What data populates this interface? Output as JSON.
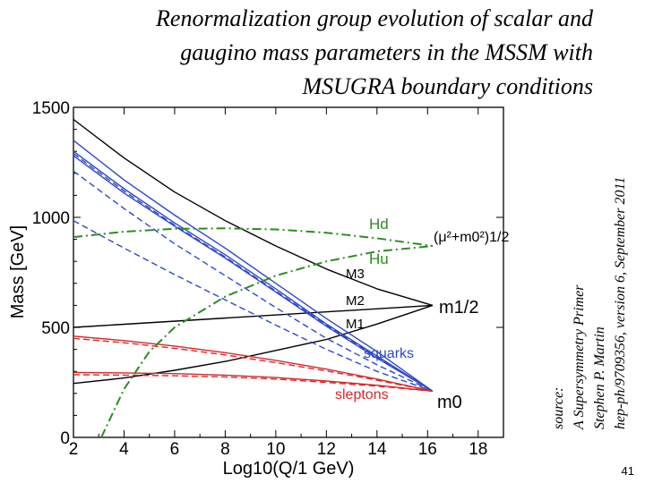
{
  "slide": {
    "title_lines": [
      "Renormalization group evolution of scalar and",
      "gaugino mass parameters in the MSSM with",
      "MSUGRA boundary conditions"
    ],
    "source_lines": [
      "source:",
      "A Supersymmetry Primer",
      "Stephen P. Martin",
      "hep-ph/9709356, version 6, September 2011"
    ],
    "page_number": "41"
  },
  "chart_data": {
    "type": "line",
    "xlabel": "Log10(Q/1 GeV)",
    "ylabel": "Mass  [GeV]",
    "xlim": [
      2,
      19
    ],
    "ylim": [
      0,
      1500
    ],
    "xticks": [
      2,
      4,
      6,
      8,
      10,
      12,
      14,
      16,
      18
    ],
    "yticks": [
      0,
      500,
      1000,
      1500
    ],
    "colors": {
      "gaugino": "#000000",
      "squark": "#2f48c8",
      "slepton": "#d8262a",
      "higgs": "#2e8b22"
    },
    "labels": {
      "M3": "M3",
      "M2": "M2",
      "M1": "M1",
      "m12": "m1/2",
      "m0": "m0",
      "squarks": "squarks",
      "sleptons": "sleptons",
      "Hd": "Hd",
      "Hu": "Hu",
      "mu_combo": "(μ²+m0²)1/2"
    },
    "series": [
      {
        "name": "M3",
        "group": "gaugino",
        "style": "solid",
        "x": [
          2,
          4,
          6,
          8,
          10,
          12,
          14,
          16.2
        ],
        "y": [
          1445,
          1270,
          1115,
          985,
          870,
          765,
          675,
          600
        ]
      },
      {
        "name": "M2",
        "group": "gaugino",
        "style": "solid",
        "x": [
          2,
          16.2
        ],
        "y": [
          500,
          600
        ]
      },
      {
        "name": "M1",
        "group": "gaugino",
        "style": "solid",
        "x": [
          2,
          4,
          6,
          8,
          10,
          12,
          14,
          16.2
        ],
        "y": [
          245,
          270,
          305,
          345,
          395,
          445,
          515,
          600
        ]
      },
      {
        "name": "squark 1",
        "group": "squark",
        "style": "solid",
        "x": [
          2,
          4,
          6,
          8,
          10,
          12,
          14,
          16.2
        ],
        "y": [
          1350,
          1170,
          1010,
          860,
          700,
          540,
          390,
          210
        ]
      },
      {
        "name": "squark 2",
        "group": "squark",
        "style": "solid",
        "x": [
          2,
          4,
          6,
          8,
          10,
          12,
          14,
          16.2
        ],
        "y": [
          1300,
          1130,
          975,
          830,
          675,
          515,
          370,
          210
        ]
      },
      {
        "name": "squark 3",
        "group": "squark",
        "style": "solid",
        "x": [
          2,
          4,
          6,
          8,
          10,
          12,
          14,
          16.2
        ],
        "y": [
          1280,
          1110,
          960,
          815,
          660,
          505,
          360,
          210
        ]
      },
      {
        "name": "squark 4",
        "group": "squark",
        "style": "dashed",
        "x": [
          2,
          4,
          6,
          8,
          10,
          12,
          14,
          16.2
        ],
        "y": [
          1290,
          1120,
          965,
          820,
          665,
          510,
          365,
          210
        ]
      },
      {
        "name": "squark 5",
        "group": "squark",
        "style": "dashed",
        "x": [
          2,
          4,
          6,
          8,
          10,
          12,
          14,
          16.2
        ],
        "y": [
          1210,
          1040,
          880,
          735,
          590,
          450,
          330,
          210
        ]
      },
      {
        "name": "squark 6",
        "group": "squark",
        "style": "dashed",
        "x": [
          2,
          4,
          6,
          8,
          10,
          12,
          14,
          16.2
        ],
        "y": [
          985,
          860,
          740,
          625,
          510,
          400,
          300,
          210
        ]
      },
      {
        "name": "slepton 1",
        "group": "slepton",
        "style": "solid",
        "x": [
          2,
          4,
          6,
          8,
          10,
          12,
          14,
          16.2
        ],
        "y": [
          460,
          440,
          415,
          385,
          350,
          310,
          265,
          210
        ]
      },
      {
        "name": "slepton 2",
        "group": "slepton",
        "style": "dashed",
        "x": [
          2,
          4,
          6,
          8,
          10,
          12,
          14,
          16.2
        ],
        "y": [
          450,
          430,
          405,
          375,
          340,
          302,
          260,
          210
        ]
      },
      {
        "name": "slepton 3",
        "group": "slepton",
        "style": "solid",
        "x": [
          2,
          4,
          6,
          8,
          10,
          12,
          14,
          16.2
        ],
        "y": [
          295,
          293,
          290,
          283,
          272,
          256,
          237,
          210
        ]
      },
      {
        "name": "slepton 4",
        "group": "slepton",
        "style": "dashed",
        "x": [
          2,
          4,
          6,
          8,
          10,
          12,
          14,
          16.2
        ],
        "y": [
          285,
          283,
          280,
          275,
          265,
          250,
          233,
          210
        ]
      },
      {
        "name": "Hd",
        "group": "higgs",
        "style": "dashdot",
        "x": [
          2,
          4,
          6,
          8,
          10,
          12,
          14,
          16.2
        ],
        "y": [
          910,
          935,
          948,
          950,
          945,
          930,
          905,
          870
        ]
      },
      {
        "name": "Hu",
        "group": "higgs",
        "style": "dashdot",
        "x": [
          3.1,
          4,
          5,
          6,
          8,
          10,
          12,
          14,
          16.2
        ],
        "y": [
          0,
          220,
          390,
          500,
          640,
          735,
          800,
          845,
          870
        ]
      }
    ]
  }
}
